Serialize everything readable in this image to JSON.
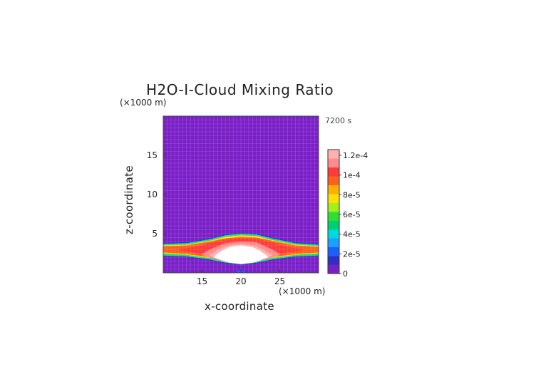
{
  "chart_data": {
    "type": "heatmap",
    "title": "H2O-I-Cloud Mixing Ratio",
    "time_label": "7200 s",
    "xlabel": "x-coordinate",
    "ylabel": "z-coordinate",
    "x_unit": "(×1000 m)",
    "z_unit": "(×1000 m)",
    "xlim": [
      10,
      30
    ],
    "zlim": [
      0,
      20
    ],
    "x_ticks": [
      15,
      20,
      25
    ],
    "z_ticks": [
      5,
      10,
      15
    ],
    "colorbar": {
      "ticks": [
        "0",
        "2e-5",
        "4e-5",
        "6e-5",
        "8e-5",
        "1e-4",
        "1.2e-4"
      ],
      "min": 0,
      "max": 0.00012,
      "levels": [
        {
          "value": 0.0,
          "color": "#7a1fc8"
        },
        {
          "value": 1e-05,
          "color": "#2f2fc8"
        },
        {
          "value": 2e-05,
          "color": "#1a60ff"
        },
        {
          "value": 3e-05,
          "color": "#1aa0ff"
        },
        {
          "value": 4e-05,
          "color": "#00d8e0"
        },
        {
          "value": 5e-05,
          "color": "#00d070"
        },
        {
          "value": 6e-05,
          "color": "#30e030"
        },
        {
          "value": 7e-05,
          "color": "#a0f020"
        },
        {
          "value": 8e-05,
          "color": "#ffe000"
        },
        {
          "value": 9e-05,
          "color": "#ffb000"
        },
        {
          "value": 0.0001,
          "color": "#ff6020"
        },
        {
          "value": 0.00011,
          "color": "#ff3a3a"
        },
        {
          "value": 0.000115,
          "color": "#ff8c8c"
        },
        {
          "value": 0.00012,
          "color": "#ffb0b0"
        }
      ]
    },
    "cloud_bands": [
      {
        "level": 1e-05,
        "color": "#2f2fc8",
        "x": [
          10,
          13,
          16,
          18,
          20,
          22,
          24,
          27,
          30
        ],
        "z_top": [
          3.8,
          3.9,
          4.4,
          4.9,
          5.1,
          5.0,
          4.5,
          3.9,
          3.7
        ],
        "z_bot": [
          2.1,
          2.0,
          1.6,
          1.2,
          1.0,
          1.2,
          1.6,
          2.0,
          2.1
        ]
      },
      {
        "level": 4e-05,
        "color": "#00d8e0",
        "x": [
          10,
          13,
          16,
          18,
          20,
          22,
          24,
          27,
          30
        ],
        "z_top": [
          3.7,
          3.8,
          4.3,
          4.8,
          5.0,
          4.9,
          4.4,
          3.8,
          3.6
        ],
        "z_bot": [
          2.2,
          2.1,
          1.7,
          1.3,
          1.1,
          1.3,
          1.7,
          2.1,
          2.2
        ]
      },
      {
        "level": 6e-05,
        "color": "#30e030",
        "x": [
          10,
          13,
          16,
          18,
          20,
          22,
          24,
          27,
          30
        ],
        "z_top": [
          3.6,
          3.7,
          4.2,
          4.7,
          4.9,
          4.8,
          4.3,
          3.7,
          3.5
        ],
        "z_bot": [
          2.3,
          2.2,
          1.8,
          1.4,
          1.2,
          1.4,
          1.8,
          2.2,
          2.3
        ]
      },
      {
        "level": 8e-05,
        "color": "#ffe000",
        "x": [
          10,
          13,
          16,
          18,
          20,
          22,
          24,
          27,
          30
        ],
        "z_top": [
          3.5,
          3.6,
          4.1,
          4.6,
          4.8,
          4.7,
          4.2,
          3.6,
          3.4
        ],
        "z_bot": [
          2.5,
          2.3,
          1.9,
          1.5,
          1.3,
          1.5,
          1.9,
          2.3,
          2.5
        ]
      },
      {
        "level": 0.0001,
        "color": "#ff6020",
        "x": [
          10,
          13,
          16,
          18,
          20,
          22,
          24,
          27,
          30
        ],
        "z_top": [
          3.4,
          3.5,
          4.0,
          4.4,
          4.6,
          4.5,
          4.1,
          3.5,
          3.3
        ],
        "z_bot": [
          2.6,
          2.4,
          2.0,
          1.6,
          1.4,
          1.6,
          2.0,
          2.4,
          2.6
        ]
      },
      {
        "level": 0.00011,
        "color": "#ff3a3a",
        "x": [
          12,
          14,
          16,
          18,
          20,
          22,
          24,
          26,
          28
        ],
        "z_top": [
          3.0,
          3.3,
          3.8,
          4.2,
          4.4,
          4.3,
          3.9,
          3.3,
          3.0
        ],
        "z_bot": [
          2.9,
          2.6,
          2.1,
          1.7,
          1.5,
          1.7,
          2.1,
          2.6,
          2.9
        ]
      },
      {
        "level": 0.000115,
        "color": "#ff8c8c",
        "x": [
          15,
          16,
          18,
          20,
          22,
          24,
          25
        ],
        "z_top": [
          2.4,
          3.0,
          3.8,
          4.0,
          3.9,
          3.0,
          2.4
        ],
        "z_bot": [
          2.3,
          1.9,
          1.4,
          1.2,
          1.4,
          1.9,
          2.3
        ]
      },
      {
        "level": 0.00012,
        "color": "#ffb0b0",
        "x": [
          16,
          17,
          18,
          20,
          22,
          23,
          24
        ],
        "z_top": [
          2.3,
          2.9,
          3.4,
          3.7,
          3.4,
          2.9,
          2.3
        ],
        "z_bot": [
          2.2,
          1.8,
          1.5,
          1.3,
          1.5,
          1.8,
          2.2
        ]
      },
      {
        "level": 0.000125,
        "color": "#ffffff",
        "x": [
          16.5,
          17.5,
          18.5,
          20,
          21.5,
          22.5,
          23.5
        ],
        "z_top": [
          2.1,
          2.8,
          3.3,
          3.5,
          3.3,
          2.8,
          2.1
        ],
        "z_bot": [
          2.0,
          1.6,
          1.3,
          1.1,
          1.3,
          1.6,
          2.0
        ]
      }
    ],
    "ground_patch": {
      "x": [
        19.5,
        20.5
      ],
      "z": [
        0,
        0.3
      ],
      "color": "#1a60ff"
    },
    "grid": true
  }
}
